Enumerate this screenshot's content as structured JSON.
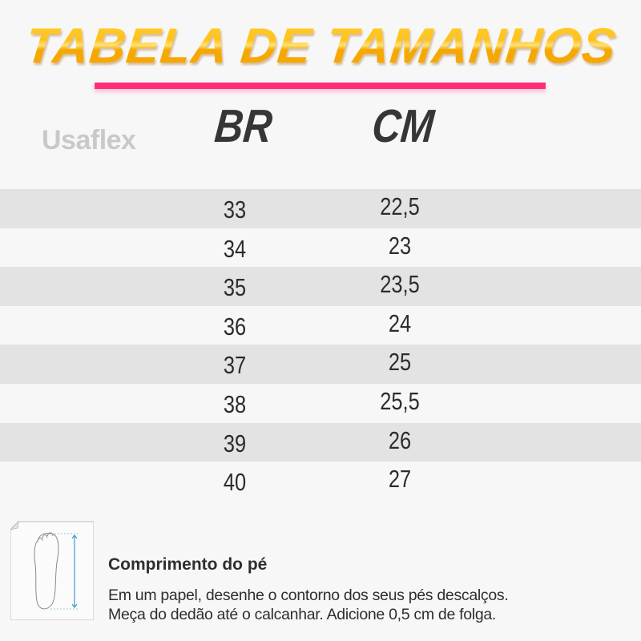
{
  "title": "TABELA DE TAMANHOS",
  "brand": "Usaflex",
  "accent_color": "#ff2d78",
  "title_color": "#ffb703",
  "columns": [
    "BR",
    "CM"
  ],
  "rows": [
    {
      "br": "33",
      "cm": "22,5"
    },
    {
      "br": "34",
      "cm": "23"
    },
    {
      "br": "35",
      "cm": "23,5"
    },
    {
      "br": "36",
      "cm": "24"
    },
    {
      "br": "37",
      "cm": "25"
    },
    {
      "br": "38",
      "cm": "25,5"
    },
    {
      "br": "39",
      "cm": "26"
    },
    {
      "br": "40",
      "cm": "27"
    }
  ],
  "instructions": {
    "icon": "foot-measure-icon",
    "heading": "Comprimento do pé",
    "line1": "Em um papel, desenhe o contorno dos seus pés descalços.",
    "line2": "Meça do dedão até o calcanhar. Adicione 0,5 cm de folga."
  }
}
